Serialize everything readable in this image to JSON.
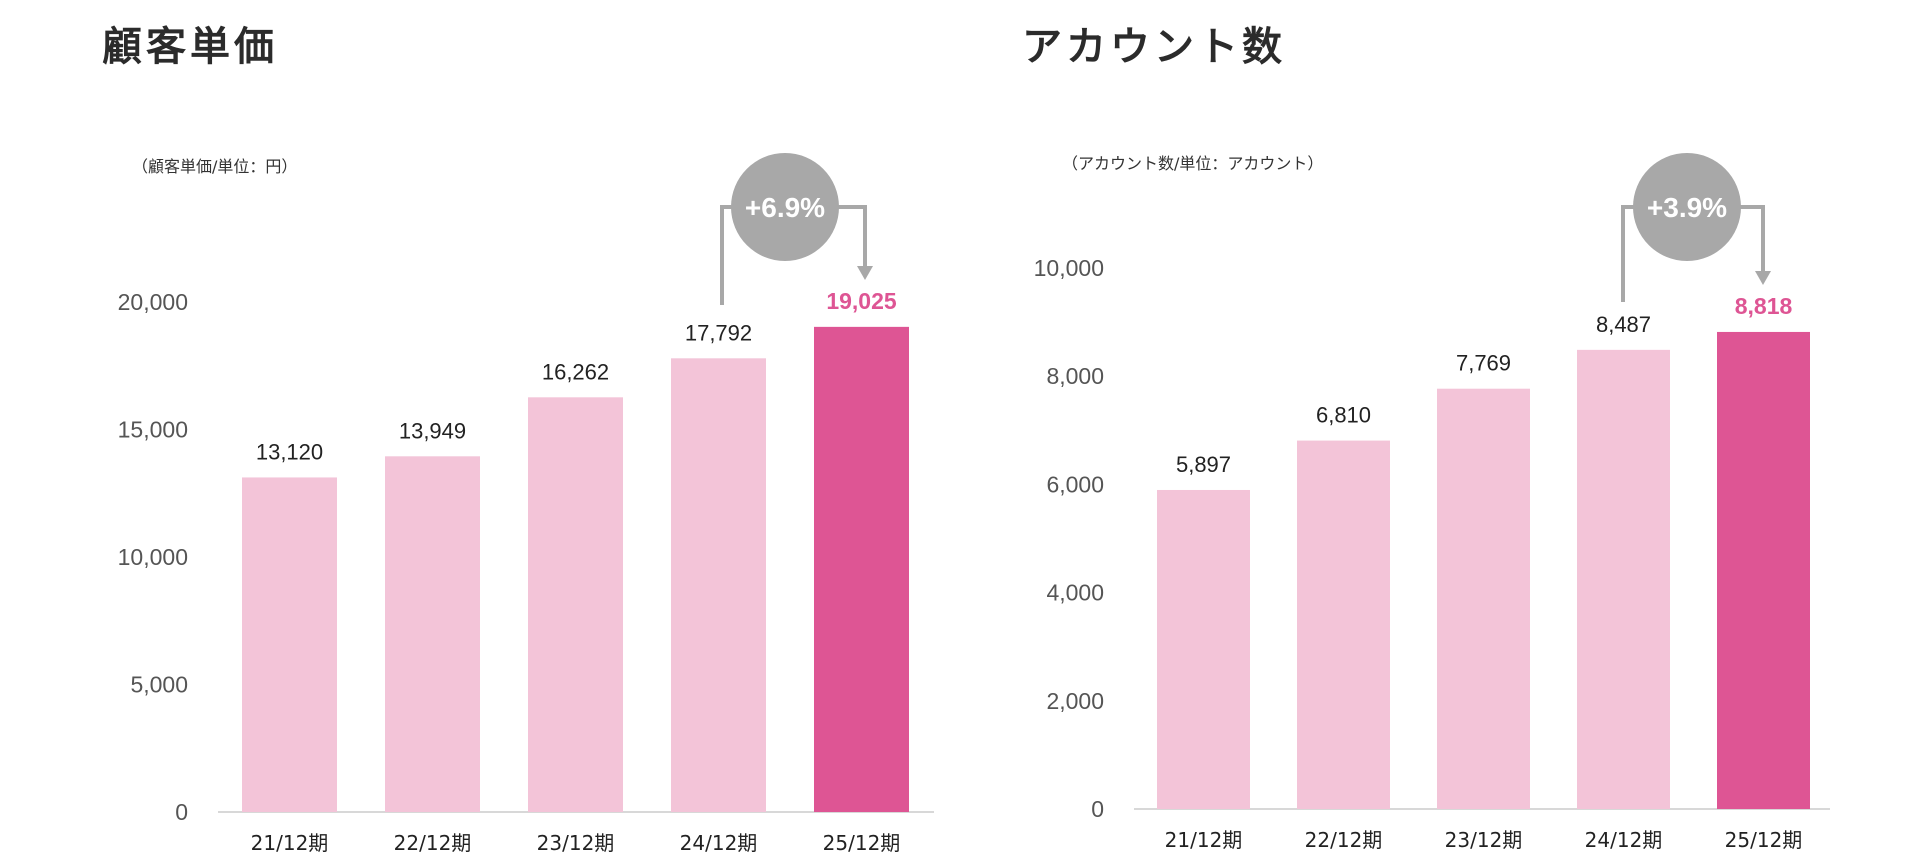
{
  "colors": {
    "bar": "#f3c4d8",
    "bar_highlight": "#de5594",
    "highlight_text": "#de5594",
    "arrow": "#a8a8a8",
    "axis": "#cccccc"
  },
  "chart_data": [
    {
      "type": "bar",
      "title": "顧客単価",
      "unit_note": "（顧客単価/単位：円）",
      "categories": [
        "21/12期",
        "22/12期",
        "23/12期",
        "24/12期",
        "25/12期"
      ],
      "values": [
        13120,
        13949,
        16262,
        17792,
        19025
      ],
      "value_labels": [
        "13,120",
        "13,949",
        "16,262",
        "17,792",
        "19,025"
      ],
      "highlight_index": 4,
      "y_ticks": [
        0,
        5000,
        10000,
        15000,
        20000
      ],
      "y_tick_labels": [
        "0",
        "5,000",
        "10,000",
        "15,000",
        "20,000"
      ],
      "ylim": [
        0,
        20000
      ],
      "grid": false,
      "growth_label": "+6.9%"
    },
    {
      "type": "bar",
      "title": "アカウント数",
      "unit_note": "（アカウント数/単位：アカウント）",
      "categories": [
        "21/12期",
        "22/12期",
        "23/12期",
        "24/12期",
        "25/12期"
      ],
      "values": [
        5897,
        6810,
        7769,
        8487,
        8818
      ],
      "value_labels": [
        "5,897",
        "6,810",
        "7,769",
        "8,487",
        "8,818"
      ],
      "highlight_index": 4,
      "y_ticks": [
        0,
        2000,
        4000,
        6000,
        8000,
        10000
      ],
      "y_tick_labels": [
        "0",
        "2,000",
        "4,000",
        "6,000",
        "8,000",
        "10,000"
      ],
      "ylim": [
        0,
        10000
      ],
      "grid": false,
      "growth_label": "+3.9%"
    }
  ]
}
